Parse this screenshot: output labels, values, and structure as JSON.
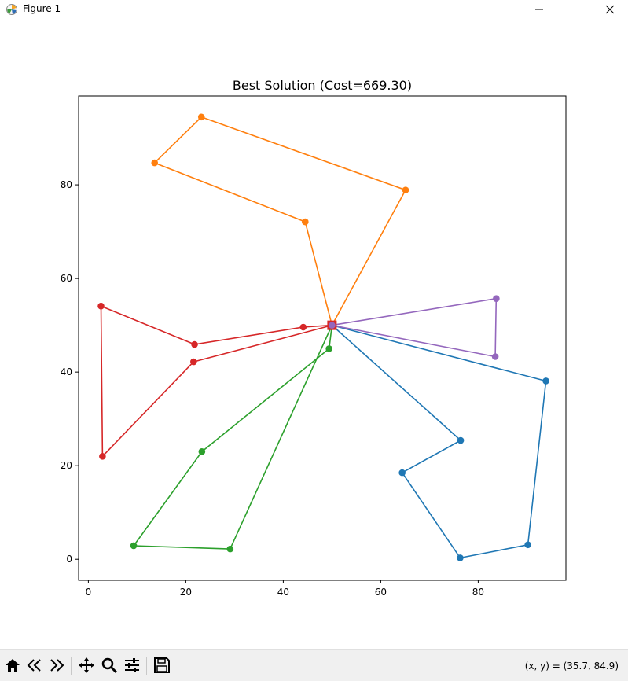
{
  "window": {
    "title": "Figure 1"
  },
  "toolbar": {
    "buttons": [
      {
        "name": "home-icon"
      },
      {
        "name": "back-icon"
      },
      {
        "name": "forward-icon"
      },
      {
        "name": "pan-icon"
      },
      {
        "name": "zoom-icon"
      },
      {
        "name": "configure-subplots-icon"
      },
      {
        "name": "save-icon"
      }
    ],
    "coords": "(x, y) = (35.7, 84.9)"
  },
  "chart_data": {
    "type": "line",
    "title": "Best Solution (Cost=669.30)",
    "xlabel": "",
    "ylabel": "",
    "xlim": [
      -2,
      98
    ],
    "ylim": [
      -4.5,
      99
    ],
    "xticks": [
      0,
      20,
      40,
      60,
      80
    ],
    "yticks": [
      0,
      20,
      40,
      60,
      80
    ],
    "grid": false,
    "depot": {
      "x": 50,
      "y": 50,
      "color": "#d62728",
      "marker": "square"
    },
    "series": [
      {
        "color": "#1f77b4",
        "points": [
          [
            50,
            50
          ],
          [
            76.4,
            25.4
          ],
          [
            64.4,
            18.5
          ],
          [
            76.3,
            0.3
          ],
          [
            90.2,
            3.1
          ],
          [
            93.9,
            38.1
          ],
          [
            50,
            50
          ]
        ]
      },
      {
        "color": "#ff7f0e",
        "points": [
          [
            50,
            50
          ],
          [
            44.5,
            72.1
          ],
          [
            13.6,
            84.7
          ],
          [
            23.2,
            94.5
          ],
          [
            65.1,
            78.9
          ],
          [
            50,
            50
          ]
        ]
      },
      {
        "color": "#2ca02c",
        "points": [
          [
            50,
            50
          ],
          [
            49.4,
            45
          ],
          [
            23.3,
            23
          ],
          [
            9.3,
            2.9
          ],
          [
            29.1,
            2.2
          ],
          [
            50,
            50
          ]
        ]
      },
      {
        "color": "#d62728",
        "points": [
          [
            50,
            50
          ],
          [
            44.1,
            49.6
          ],
          [
            21.8,
            45.9
          ],
          [
            2.6,
            54.1
          ],
          [
            2.9,
            22
          ],
          [
            21.6,
            42.2
          ],
          [
            50,
            50
          ]
        ]
      },
      {
        "color": "#9467bd",
        "points": [
          [
            50,
            50
          ],
          [
            83.7,
            55.7
          ],
          [
            83.5,
            43.3
          ],
          [
            50,
            50
          ]
        ]
      }
    ]
  }
}
